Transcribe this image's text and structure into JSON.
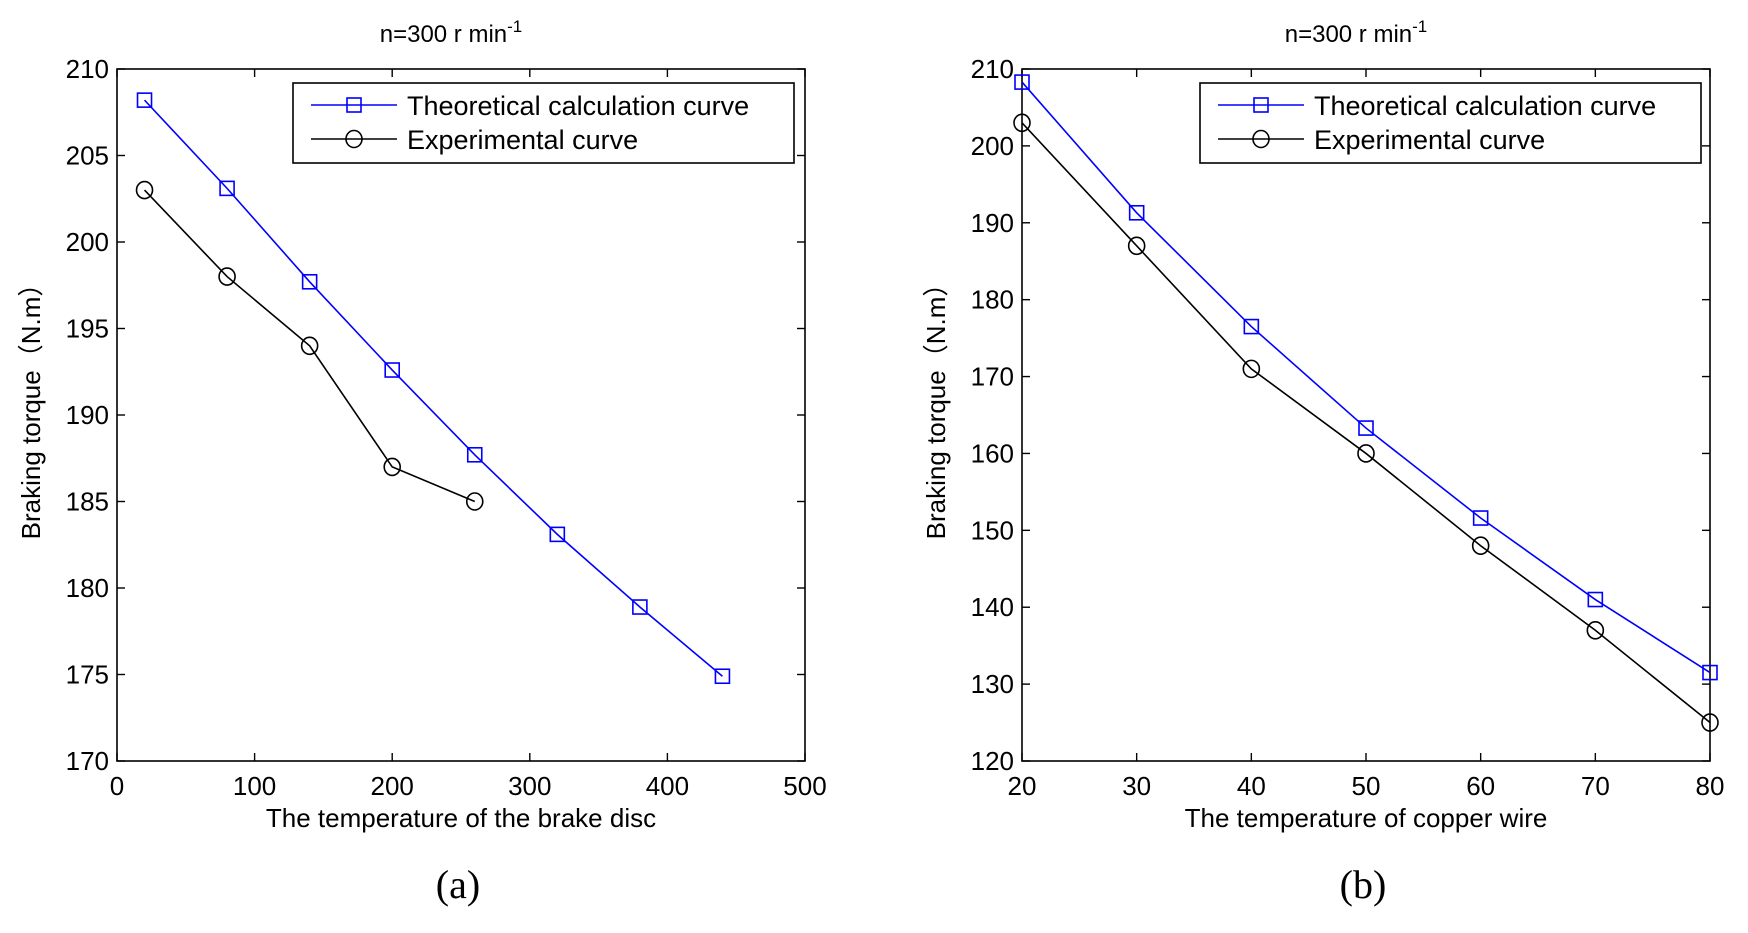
{
  "chart_data": [
    {
      "type": "line",
      "panel_label": "(a)",
      "title": "n=300 r min",
      "title_superscript": "-1",
      "xlabel": "The temperature of the brake disc",
      "ylabel": "Braking torque（N.m）",
      "xlim": [
        0,
        500
      ],
      "ylim": [
        170,
        210
      ],
      "xticks": [
        0,
        100,
        200,
        300,
        400,
        500
      ],
      "yticks": [
        170,
        175,
        180,
        185,
        190,
        195,
        200,
        205,
        210
      ],
      "grid": false,
      "legend_position": "top-right",
      "series": [
        {
          "name": "Theoretical calculation curve",
          "color": "#0000ff",
          "marker": "square",
          "x": [
            20,
            80,
            140,
            200,
            260,
            320,
            380,
            440
          ],
          "y": [
            208.2,
            203.1,
            197.7,
            192.6,
            187.7,
            183.1,
            178.9,
            174.9
          ]
        },
        {
          "name": "Experimental curve",
          "color": "#000000",
          "marker": "circle",
          "x": [
            20,
            80,
            140,
            200,
            260
          ],
          "y": [
            203,
            198,
            194,
            187,
            185
          ]
        }
      ]
    },
    {
      "type": "line",
      "panel_label": "(b)",
      "title": "n=300 r min",
      "title_superscript": "-1",
      "xlabel": "The temperature of copper wire",
      "ylabel": "Braking torque（N.m）",
      "xlim": [
        20,
        80
      ],
      "ylim": [
        120,
        210
      ],
      "xticks": [
        20,
        30,
        40,
        50,
        60,
        70,
        80
      ],
      "yticks": [
        120,
        130,
        140,
        150,
        160,
        170,
        180,
        190,
        200,
        210
      ],
      "grid": false,
      "legend_position": "top-right",
      "series": [
        {
          "name": "Theoretical calculation curve",
          "color": "#0000ff",
          "marker": "square",
          "x": [
            20,
            30,
            40,
            50,
            60,
            70,
            80
          ],
          "y": [
            208.3,
            191.3,
            176.5,
            163.3,
            151.6,
            141,
            131.5
          ]
        },
        {
          "name": "Experimental curve",
          "color": "#000000",
          "marker": "circle",
          "x": [
            20,
            30,
            40,
            50,
            60,
            70,
            80
          ],
          "y": [
            203,
            187,
            171,
            160,
            148,
            137,
            125
          ]
        }
      ]
    }
  ]
}
